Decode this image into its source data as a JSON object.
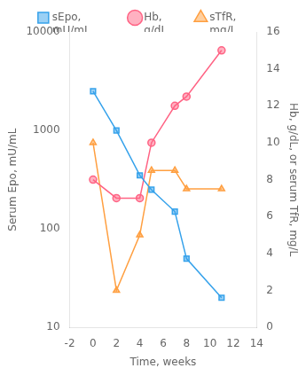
{
  "chart_data": {
    "type": "line",
    "xlabel": "Time, weeks",
    "ylabel": "Serum Epo, mU/mL",
    "y2label": "Hb, g/dL, or serum TfR, mg/L",
    "x": [
      0,
      2,
      4,
      5,
      7,
      8,
      11
    ],
    "series": [
      {
        "name": "sEpo,\nmU/mL",
        "values": [
          2500,
          1000,
          350,
          250,
          150,
          50,
          20
        ],
        "axis": "y",
        "marker": "square"
      },
      {
        "name": "Hb,\ng/dL",
        "values": [
          8.0,
          7.0,
          7.0,
          10.0,
          12.0,
          12.5,
          15.0
        ],
        "axis": "y2",
        "marker": "circle"
      },
      {
        "name": "sTfR,\nmg/L",
        "values": [
          10,
          2,
          5,
          8.5,
          8.5,
          7.5,
          7.5
        ],
        "axis": "y2",
        "marker": "triangle"
      }
    ],
    "xlim": [
      -2,
      14
    ],
    "xticks": [
      -2,
      0,
      2,
      4,
      6,
      8,
      10,
      12,
      14
    ],
    "ylim": [
      10,
      10000
    ],
    "yticks": [
      10,
      100,
      1000,
      10000
    ],
    "y2lim": [
      0,
      16
    ],
    "y2ticks": [
      0,
      2,
      4,
      6,
      8,
      10,
      12,
      14,
      16
    ],
    "log": "y",
    "grid": false,
    "legend": "top"
  }
}
